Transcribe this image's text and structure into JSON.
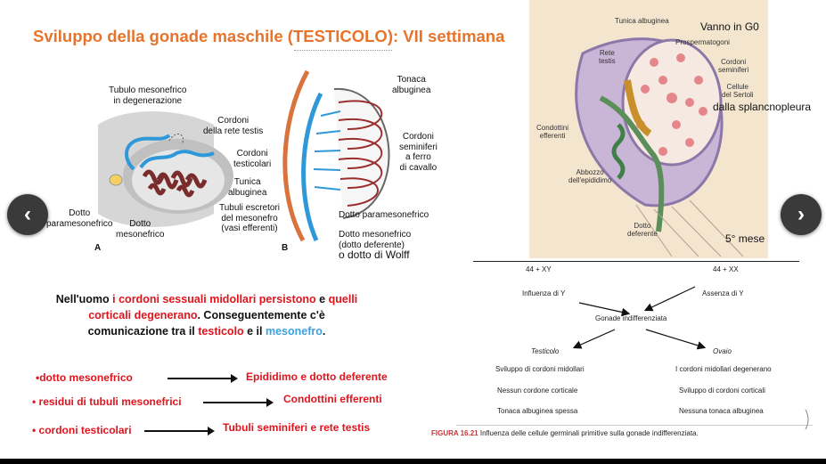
{
  "slide": {
    "title": "Sviluppo della gonade maschile (TESTICOLO): VII settimana",
    "figure_left": {
      "labels": {
        "tubulo": "Tubulo mesonefrico\nin degenerazione",
        "cordoni_rete": "Cordoni\ndella rete testis",
        "cordoni_testicolari": "Cordoni\ntesticolari",
        "tunica": "Tunica\nalbuginea",
        "dotto_para": "Dotto\nparamesonefrico",
        "dotto_meso": "Dotto\nmesonefrico",
        "panel_a": "A",
        "panel_b": "B",
        "tonaca": "Tonaca\nalbuginea",
        "cordoni_seminiferi": "Cordoni\nseminiferi\na ferro\ndi cavallo",
        "tubuli_escretori": "Tubuli escretori\ndel mesonefro\n(vasi efferenti)",
        "dotto_para_b": "Dotto paramesonefrico",
        "dotto_meso_b": "Dotto mesonefrico\n(dotto deferente)",
        "wolff": "o dotto di Wolff"
      }
    },
    "figure_right": {
      "labels": {
        "tunica": "Tunica albuginea",
        "prosperm": "Prospermatogoni",
        "rete": "Rete\ntestis",
        "cordoni": "Cordoni\nseminiferi",
        "sertoli": "Cellule\ndel Sertoli",
        "condottini": "Condottini\nefferenti",
        "abbozzo": "Abbozzo\ndell'epididimo",
        "dotto_def": "Dotto\ndeferente"
      },
      "vanno": "Vanno in G0",
      "splanc": "dalla splancnopleura",
      "mese": "5° mese"
    },
    "paragraph": {
      "p1": "Nell'uomo ",
      "p2": "i cordoni sessuali midollari persistono",
      "p3": " e ",
      "p4": "quelli corticali degenerano",
      "p5": ". Conseguentemente c'è comunicazione tra il ",
      "p6": "testicolo",
      "p7": " e il ",
      "p8": "mesonefro",
      "p9": "."
    },
    "mappings": [
      {
        "from": "•dotto mesonefrico",
        "to": "Epididimo e dotto deferente"
      },
      {
        "from": "• residui di tubuli mesonefrici",
        "to": "Condottini efferenti"
      },
      {
        "from": "• cordoni testicolari",
        "to": "Tubuli seminiferi e rete testis"
      }
    ],
    "flowchart": {
      "xy": "44 + XY",
      "xx": "44 + XX",
      "influenza": "Influenza di Y",
      "assenza": "Assenza di Y",
      "gonade": "Gonade indifferenziata",
      "testicolo": "Testicolo",
      "ovaio": "Ovaio",
      "t1": "Sviluppo di cordoni midollari",
      "t2": "Nessun cordone corticale",
      "t3": "Tonaca albuginea spessa",
      "o1": "I cordoni midollari degenerano",
      "o2": "Sviluppo di cordoni corticali",
      "o3": "Nessuna tonaca albuginea",
      "caption_label": "FIGURA 16.21",
      "caption_text": "Influenza delle cellule germinali primitive sulla gonade indifferenziata."
    }
  },
  "nav": {
    "prev": "‹",
    "next": "›"
  },
  "colors": {
    "title": "#e8732a",
    "highlight": "#e0141d",
    "mesonefro": "#3aa3e0",
    "nav": "#3a3a3a"
  }
}
